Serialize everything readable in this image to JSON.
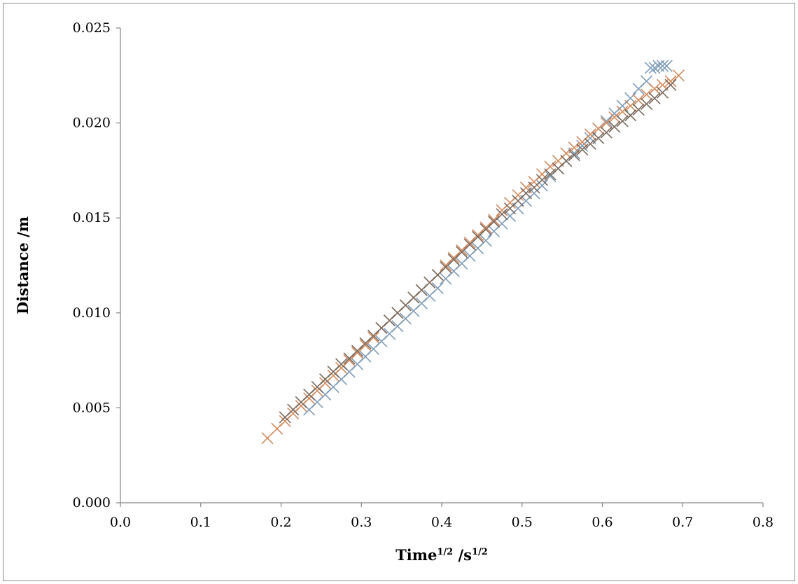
{
  "chart_data": {
    "type": "scatter",
    "title": "",
    "xlabel": "Time",
    "xlabel_sup": "1/2",
    "xlabel_unit": " /s",
    "xlabel_unit_sup": "1/2",
    "ylabel": "Distance /m",
    "xlim": [
      0.0,
      0.8
    ],
    "ylim": [
      0.0,
      0.025
    ],
    "xticks": [
      "0.0",
      "0.1",
      "0.2",
      "0.3",
      "0.4",
      "0.5",
      "0.6",
      "0.7",
      "0.8"
    ],
    "yticks": [
      "0.000",
      "0.005",
      "0.010",
      "0.015",
      "0.020",
      "0.025"
    ],
    "grid": false,
    "legend": "none",
    "marker": "x",
    "series": [
      {
        "color": "#7f9db9",
        "x": [
          0.235,
          0.245,
          0.255,
          0.265,
          0.275,
          0.285,
          0.295,
          0.305,
          0.315,
          0.325,
          0.335,
          0.345,
          0.355,
          0.365,
          0.375,
          0.385,
          0.395,
          0.405,
          0.415,
          0.425,
          0.435,
          0.445,
          0.455,
          0.465,
          0.475,
          0.485,
          0.495,
          0.505,
          0.515,
          0.525,
          0.535,
          0.545,
          0.555,
          0.565,
          0.575,
          0.585,
          0.595,
          0.605,
          0.615,
          0.625,
          0.635,
          0.645,
          0.655,
          0.66,
          0.665,
          0.67,
          0.675,
          0.68
        ],
        "y": [
          0.0049,
          0.0053,
          0.0057,
          0.0061,
          0.0065,
          0.0069,
          0.0073,
          0.0077,
          0.0081,
          0.0085,
          0.0089,
          0.0093,
          0.0097,
          0.0101,
          0.0105,
          0.0109,
          0.0113,
          0.0118,
          0.0122,
          0.0126,
          0.013,
          0.0134,
          0.0138,
          0.0143,
          0.0147,
          0.0151,
          0.0155,
          0.0159,
          0.0163,
          0.0167,
          0.0172,
          0.0176,
          0.018,
          0.0184,
          0.0188,
          0.0192,
          0.0197,
          0.0201,
          0.0205,
          0.0209,
          0.0213,
          0.0218,
          0.0222,
          0.0229,
          0.0229,
          0.023,
          0.023,
          0.023
        ]
      },
      {
        "color": "#d38b5d",
        "x": [
          0.183,
          0.195,
          0.205,
          0.215,
          0.225,
          0.235,
          0.245,
          0.255,
          0.265,
          0.275,
          0.285,
          0.295,
          0.305,
          0.315,
          0.325,
          0.335,
          0.345,
          0.355,
          0.365,
          0.375,
          0.385,
          0.395,
          0.405,
          0.415,
          0.425,
          0.435,
          0.445,
          0.455,
          0.465,
          0.475,
          0.485,
          0.495,
          0.505,
          0.515,
          0.525,
          0.535,
          0.545,
          0.555,
          0.565,
          0.575,
          0.585,
          0.595,
          0.605,
          0.615,
          0.625,
          0.635,
          0.645,
          0.655,
          0.665,
          0.675,
          0.685,
          0.695
        ],
        "y": [
          0.0034,
          0.0039,
          0.0043,
          0.0047,
          0.0051,
          0.0055,
          0.0059,
          0.0063,
          0.0067,
          0.0071,
          0.0075,
          0.0079,
          0.0083,
          0.0087,
          0.0092,
          0.0096,
          0.01,
          0.0104,
          0.0108,
          0.0112,
          0.0116,
          0.012,
          0.0125,
          0.0129,
          0.0133,
          0.0137,
          0.0141,
          0.0145,
          0.0149,
          0.0154,
          0.0158,
          0.0162,
          0.0166,
          0.0169,
          0.0173,
          0.0177,
          0.018,
          0.0184,
          0.0187,
          0.019,
          0.0194,
          0.0197,
          0.02,
          0.0203,
          0.0206,
          0.0209,
          0.0212,
          0.0215,
          0.0218,
          0.022,
          0.0222,
          0.0225
        ]
      },
      {
        "color": "#7a6a5e",
        "x": [
          0.205,
          0.215,
          0.225,
          0.235,
          0.245,
          0.255,
          0.265,
          0.275,
          0.285,
          0.295,
          0.305,
          0.315,
          0.325,
          0.335,
          0.345,
          0.355,
          0.365,
          0.375,
          0.385,
          0.395,
          0.405,
          0.415,
          0.425,
          0.435,
          0.445,
          0.455,
          0.465,
          0.475,
          0.485,
          0.495,
          0.505,
          0.515,
          0.525,
          0.535,
          0.545,
          0.555,
          0.565,
          0.575,
          0.585,
          0.595,
          0.605,
          0.615,
          0.625,
          0.635,
          0.645,
          0.655,
          0.665,
          0.675,
          0.685
        ],
        "y": [
          0.0045,
          0.0049,
          0.0053,
          0.0057,
          0.0061,
          0.0065,
          0.0069,
          0.0073,
          0.0076,
          0.008,
          0.0084,
          0.0088,
          0.0092,
          0.0096,
          0.01,
          0.0104,
          0.0108,
          0.0112,
          0.0116,
          0.012,
          0.0124,
          0.0128,
          0.0132,
          0.0136,
          0.014,
          0.0144,
          0.0148,
          0.0152,
          0.0155,
          0.0159,
          0.0163,
          0.0166,
          0.017,
          0.0173,
          0.0176,
          0.018,
          0.0183,
          0.0186,
          0.0189,
          0.0192,
          0.0195,
          0.0198,
          0.0201,
          0.0204,
          0.0207,
          0.021,
          0.0213,
          0.0216,
          0.022
        ]
      }
    ]
  }
}
